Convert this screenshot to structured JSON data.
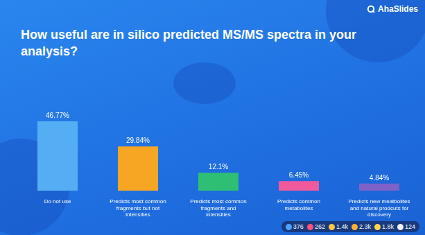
{
  "brand": "AhaSlides",
  "chart_data": {
    "type": "bar",
    "title": "How useful are in silico predicted MS/MS spectra in your analysis?",
    "categories": [
      "Do not use",
      "Predicts most common fragments but not intensities",
      "Predicts most common fragments and intensities",
      "Predicts common metabolites",
      "Predicts new meatbolites and natural prodcuts for discovery"
    ],
    "values": [
      46.77,
      29.84,
      12.1,
      6.45,
      4.84
    ],
    "value_labels": [
      "46.77%",
      "29.84%",
      "12.1%",
      "6.45%",
      "4.84%"
    ],
    "colors": [
      "#55aef3",
      "#f6a623",
      "#2fbf74",
      "#ef5a9c",
      "#7e62c8"
    ],
    "ylim": [
      0,
      50
    ],
    "yticks": [
      0,
      50
    ],
    "grid": false,
    "data_labels": true,
    "tick_labels": "x"
  },
  "reactions": [
    "376",
    "262",
    "1.4k",
    "2.3k",
    "1.8k",
    "124"
  ]
}
